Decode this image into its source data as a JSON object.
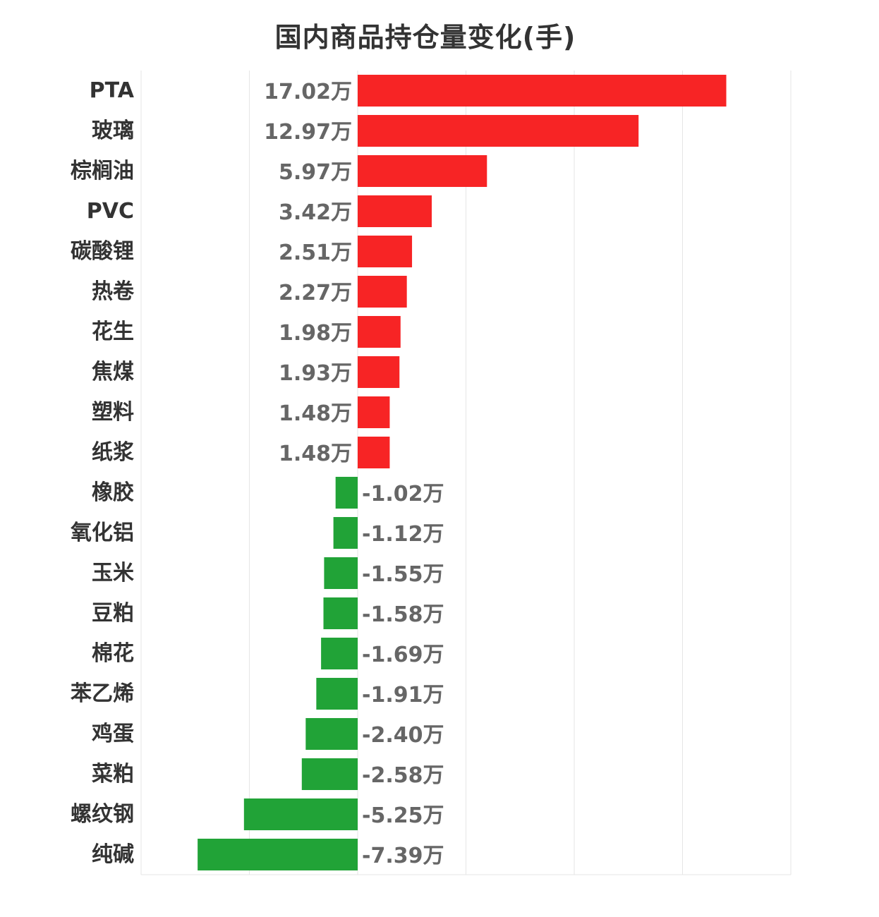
{
  "chart_data": {
    "type": "bar",
    "orientation": "horizontal",
    "title": "国内商品持仓量变化(手)",
    "unit_suffix": "万",
    "categories": [
      "PTA",
      "玻璃",
      "棕榈油",
      "PVC",
      "碳酸锂",
      "热卷",
      "花生",
      "焦煤",
      "塑料",
      "纸浆",
      "橡胶",
      "氧化铝",
      "玉米",
      "豆粕",
      "棉花",
      "苯乙烯",
      "鸡蛋",
      "菜粕",
      "螺纹钢",
      "纯碱"
    ],
    "values": [
      17.02,
      12.97,
      5.97,
      3.42,
      2.51,
      2.27,
      1.98,
      1.93,
      1.48,
      1.48,
      -1.02,
      -1.12,
      -1.55,
      -1.58,
      -1.69,
      -1.91,
      -2.4,
      -2.58,
      -5.25,
      -7.39
    ],
    "value_labels": [
      "17.02万",
      "12.97万",
      "5.97万",
      "3.42万",
      "2.51万",
      "2.27万",
      "1.98万",
      "1.93万",
      "1.48万",
      "1.48万",
      "-1.02万",
      "-1.12万",
      "-1.55万",
      "-1.58万",
      "-1.69万",
      "-1.91万",
      "-2.40万",
      "-2.58万",
      "-5.25万",
      "-7.39万"
    ],
    "xlim": [
      -10,
      20
    ],
    "grid": true,
    "legend": "none",
    "colors": {
      "positive": "#f72425",
      "negative": "#21a337"
    }
  }
}
